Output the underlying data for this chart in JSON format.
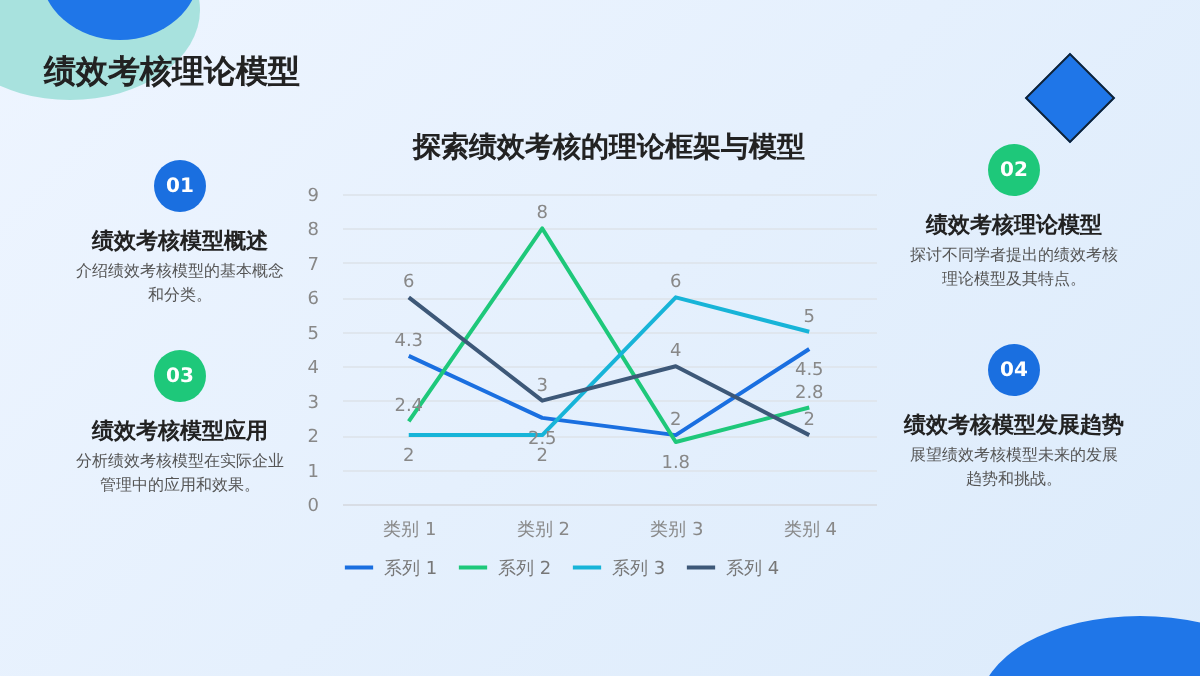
{
  "chart_data": {
    "type": "line",
    "title": "探索绩效考核的理论框架与模型",
    "categories": [
      "类别 1",
      "类别 2",
      "类别 3",
      "类别 4"
    ],
    "series": [
      {
        "name": "系列 1",
        "color": "#1a6fe0",
        "values": [
          4.3,
          2.5,
          2,
          4.5
        ]
      },
      {
        "name": "系列 2",
        "color": "#1ec87a",
        "values": [
          2.4,
          8,
          1.8,
          2.8
        ]
      },
      {
        "name": "系列 3",
        "color": "#17b4d8",
        "values": [
          2,
          2,
          6,
          5
        ]
      },
      {
        "name": "系列 4",
        "color": "#3d5878",
        "values": [
          6,
          3,
          4,
          2
        ]
      }
    ],
    "ylim": [
      0,
      9
    ],
    "yticks": [
      0,
      1,
      2,
      3,
      4,
      5,
      6,
      7,
      8,
      9
    ],
    "grid": "y",
    "legend": "bottom",
    "marker": "none",
    "line_style": "solid",
    "data_labels": true,
    "annotations": [
      "绩效考核理论模型",
      "01",
      "绩效考核模型概述",
      "介绍绩效考核模型的基本概念和分类。",
      "02",
      "绩效考核理论模型",
      "探讨不同学者提出的绩效考核理论模型及其特点。",
      "03",
      "绩效考核模型应用",
      "分析绩效考核模型在实际企业管理中的应用和效果。",
      "04",
      "绩效考核模型发展趋势",
      "展望绩效考核模型未来的发展趋势和挑战。"
    ]
  }
}
